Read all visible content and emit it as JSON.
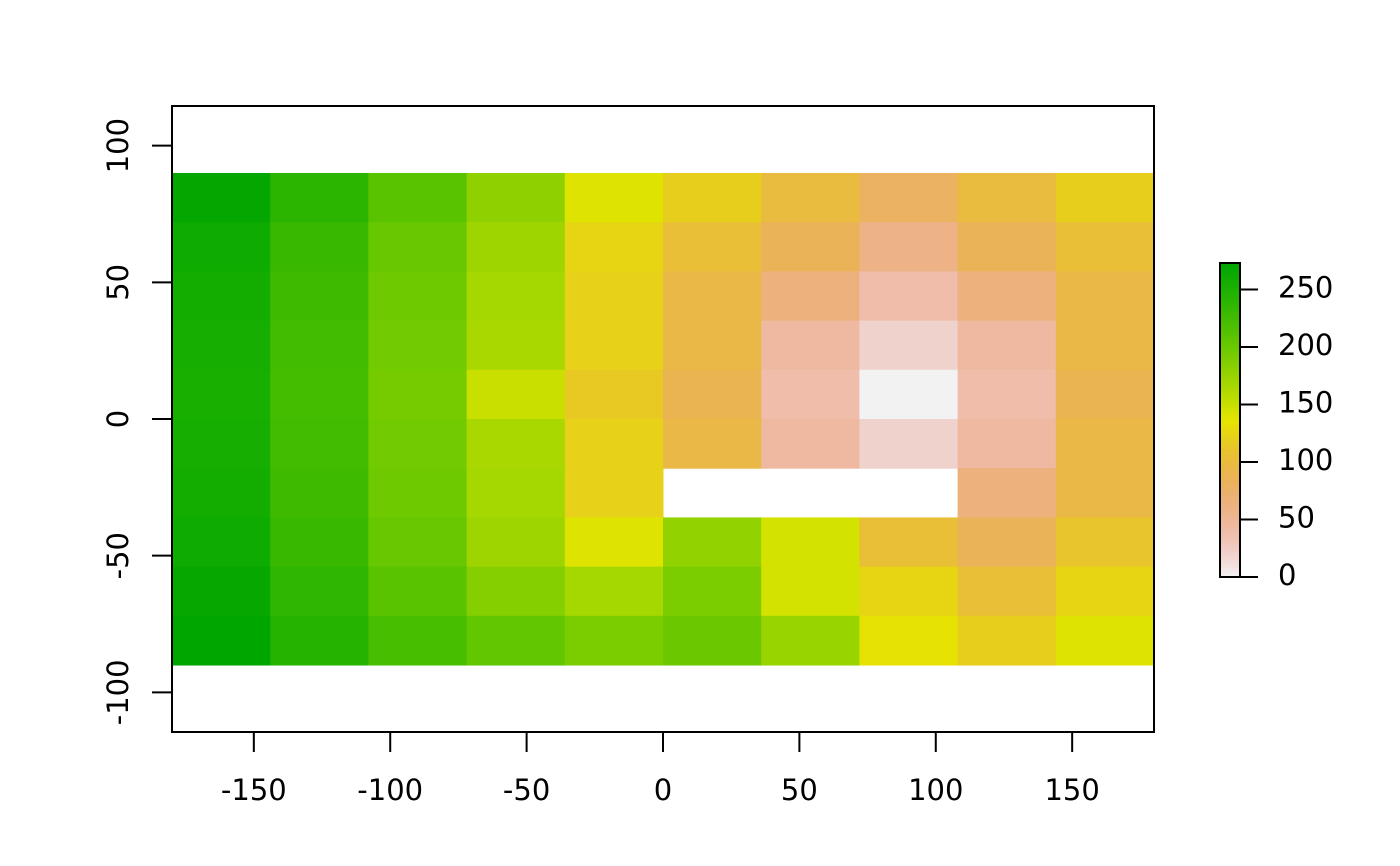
{
  "chart_data": {
    "type": "heatmap",
    "x": [
      -162,
      -126,
      -90,
      -54,
      -18,
      18,
      54,
      90,
      126,
      162
    ],
    "y": [
      81,
      63,
      45,
      27,
      9,
      -9,
      -27,
      -45,
      -63,
      -81
    ],
    "values": [
      [
        270,
        240,
        210,
        180,
        140,
        120,
        100,
        80,
        100,
        120
      ],
      [
        262,
        232,
        202,
        172,
        125,
        105,
        85,
        60,
        85,
        105
      ],
      [
        258,
        228,
        198,
        168,
        122,
        95,
        65,
        40,
        65,
        95
      ],
      [
        256,
        226,
        196,
        166,
        122,
        95,
        45,
        20,
        45,
        95
      ],
      [
        254,
        224,
        194,
        150,
        115,
        90,
        40,
        0,
        40,
        90
      ],
      [
        256,
        226,
        196,
        166,
        122,
        95,
        45,
        20,
        45,
        95
      ],
      [
        258,
        228,
        198,
        168,
        122,
        null,
        null,
        null,
        65,
        95
      ],
      [
        262,
        232,
        202,
        172,
        140,
        178,
        145,
        105,
        85,
        110
      ],
      [
        268,
        238,
        210,
        185,
        168,
        190,
        145,
        125,
        105,
        125
      ],
      [
        273,
        245,
        222,
        205,
        190,
        200,
        175,
        135,
        120,
        140
      ]
    ],
    "xlim": [
      -180,
      180
    ],
    "ylim": [
      -114.5,
      114.5
    ],
    "xticks": [
      -150,
      -100,
      -50,
      0,
      50,
      100,
      150
    ],
    "yticks": [
      -100,
      -50,
      0,
      50,
      100
    ],
    "zlim": [
      0,
      273
    ],
    "zticks": [
      0,
      50,
      100,
      150,
      200,
      250
    ],
    "colormap": "terrain"
  }
}
